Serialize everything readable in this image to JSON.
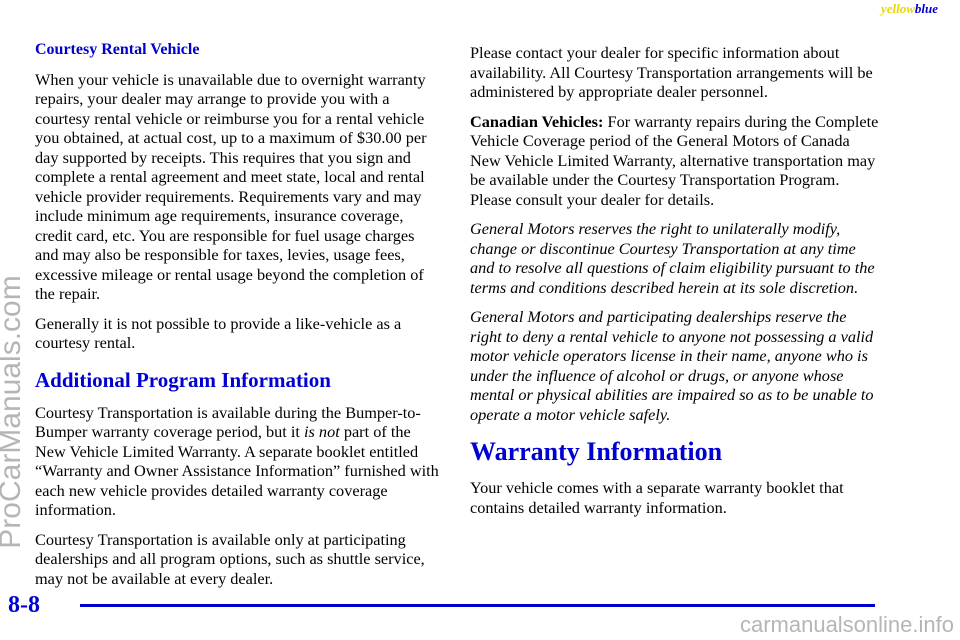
{
  "header": {
    "marker_yellow": "yellow",
    "marker_blue": "blue"
  },
  "left_column": {
    "section_title": "Courtesy Rental Vehicle",
    "paragraphs": [
      "When your vehicle is unavailable due to overnight warranty repairs, your dealer may arrange to provide you with a courtesy rental vehicle or reimburse you for a rental vehicle you obtained, at actual cost, up to a maximum of $30.00 per day supported by receipts. This requires that you sign and complete a rental agreement and meet state, local and rental vehicle provider requirements. Requirements vary and may include minimum age requirements, insurance coverage, credit card, etc. You are responsible for fuel usage charges and may also be responsible for taxes, levies, usage fees, excessive mileage or rental usage beyond the completion of the repair.",
      "Generally it is not possible to provide a like-vehicle as a courtesy rental."
    ],
    "heading": "Additional Program Information",
    "program_paragraph": {
      "before": "Courtesy Transportation is available during the Bumper-to-Bumper warranty coverage period, but it ",
      "italic": "is not",
      "after": " part of the New Vehicle Limited Warranty. A separate booklet entitled “Warranty and Owner Assistance Information” furnished with each new vehicle provides detailed warranty coverage information."
    },
    "final_paragraph": "Courtesy Transportation is available only at participating dealerships and all program options, such as shuttle service, may not be available at every dealer."
  },
  "right_column": {
    "paragraph_1": "Please contact your dealer for specific information about availability. All Courtesy Transportation arrangements will be administered by appropriate dealer personnel.",
    "canadian": {
      "lead": "Canadian Vehicles:",
      "text": " For warranty repairs during the Complete Vehicle Coverage period of the General Motors of Canada New Vehicle Limited Warranty, alternative transportation may be available under the Courtesy Transportation Program. Please consult your dealer for details."
    },
    "italic_paragraphs": [
      "General Motors reserves the right to unilaterally modify, change or discontinue Courtesy Transportation at any time and to resolve all questions of claim eligibility pursuant to the terms and conditions described herein at its sole discretion.",
      "General Motors and participating dealerships reserve the right to deny a rental vehicle to anyone not possessing a valid motor vehicle operators license in their name, anyone who is under the influence of alcohol or drugs, or anyone whose mental or physical abilities are impaired so as to be unable to operate a motor vehicle safely."
    ],
    "heading": "Warranty Information",
    "warranty_paragraph": "Your vehicle comes with a separate warranty booklet that contains detailed warranty information."
  },
  "footer": {
    "page_number": "8-8"
  },
  "watermarks": {
    "side": "ProCarManuals.com",
    "bottom": "carmanualsonline.info"
  }
}
